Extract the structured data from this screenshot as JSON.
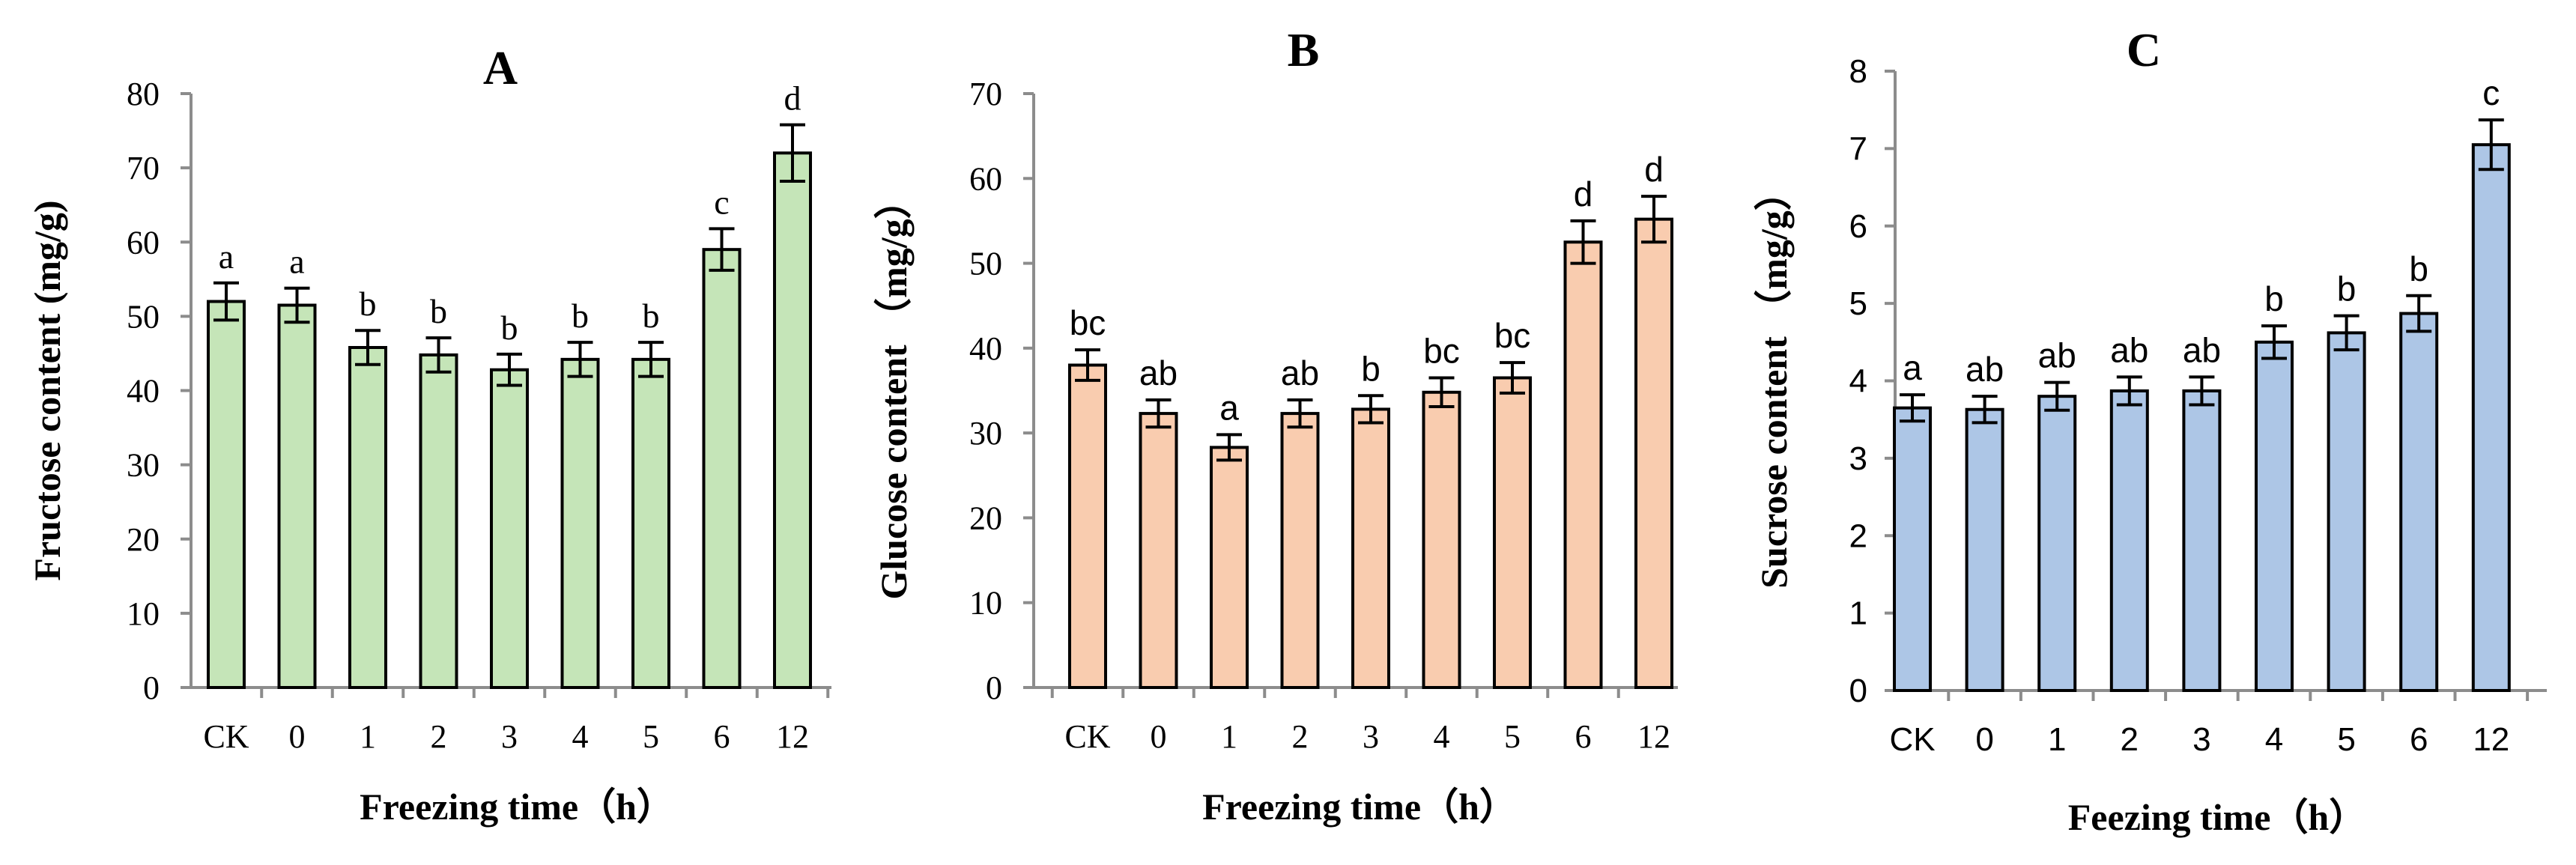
{
  "chart_data": [
    {
      "type": "bar",
      "panel_label": "A",
      "categories": [
        "CK",
        "0",
        "1",
        "2",
        "3",
        "4",
        "5",
        "6",
        "12"
      ],
      "values": [
        52,
        51.5,
        45.8,
        44.8,
        42.8,
        44.2,
        44.2,
        59,
        72
      ],
      "errors": [
        2.5,
        2.3,
        2.3,
        2.3,
        2.1,
        2.3,
        2.3,
        2.8,
        3.8
      ],
      "letters": [
        "a",
        "a",
        "b",
        "b",
        "b",
        "b",
        "b",
        "c",
        "d"
      ],
      "ylabel": "Fructose content (mg/g)",
      "xlabel": "Freezing time（h）",
      "ylim": [
        0,
        80
      ],
      "yticks": [
        "0",
        "10",
        "20",
        "30",
        "40",
        "50",
        "60",
        "70",
        "80"
      ],
      "bar_color": "#c5e5b8",
      "grid": false
    },
    {
      "type": "bar",
      "panel_label": "B",
      "categories": [
        "CK",
        "0",
        "1",
        "2",
        "3",
        "4",
        "5",
        "6",
        "12"
      ],
      "values": [
        38,
        32.3,
        28.3,
        32.3,
        32.8,
        34.8,
        36.5,
        52.5,
        55.2
      ],
      "errors": [
        1.8,
        1.6,
        1.5,
        1.6,
        1.6,
        1.7,
        1.8,
        2.5,
        2.7
      ],
      "letters": [
        "bc",
        "ab",
        "a",
        "ab",
        "b",
        "bc",
        "bc",
        "d",
        "d"
      ],
      "ylabel": "Glucose content （mg/g）",
      "xlabel": "Freezing time（h）",
      "ylim": [
        0,
        70
      ],
      "yticks": [
        "0",
        "10",
        "20",
        "30",
        "40",
        "50",
        "60",
        "70"
      ],
      "bar_color": "#f9ccaf",
      "grid": false
    },
    {
      "type": "bar",
      "panel_label": "C",
      "categories": [
        "CK",
        "0",
        "1",
        "2",
        "3",
        "4",
        "5",
        "6",
        "12"
      ],
      "values": [
        3.65,
        3.63,
        3.8,
        3.87,
        3.87,
        4.5,
        4.62,
        4.87,
        7.05
      ],
      "errors": [
        0.17,
        0.17,
        0.18,
        0.18,
        0.18,
        0.21,
        0.22,
        0.23,
        0.32
      ],
      "letters": [
        "a",
        "ab",
        "ab",
        "ab",
        "ab",
        "b",
        "b",
        "b",
        "c"
      ],
      "ylabel": "Sucrose content （mg/g）",
      "xlabel": "Feezing time（h）",
      "ylim": [
        0,
        8
      ],
      "yticks": [
        "0",
        "1",
        "2",
        "3",
        "4",
        "5",
        "6",
        "7",
        "8"
      ],
      "bar_color": "#adc6e6",
      "grid": false
    }
  ]
}
